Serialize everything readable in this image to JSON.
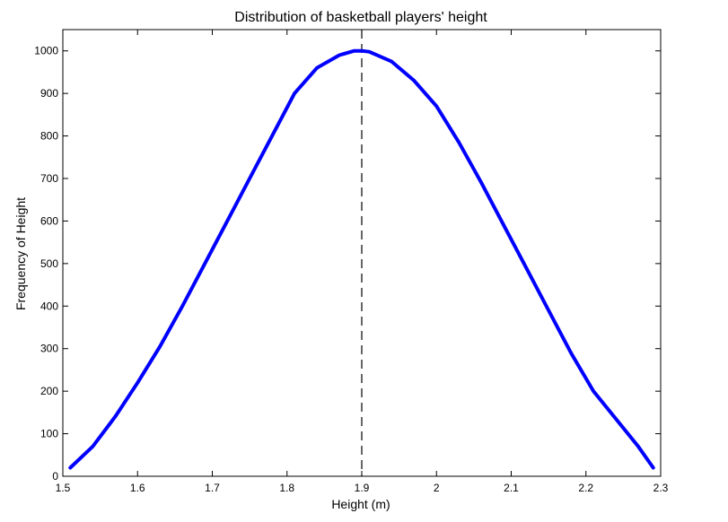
{
  "chart_data": {
    "type": "line",
    "title": "Distribution of basketball players' height",
    "xlabel": "Height (m)",
    "ylabel": "Frequency of Height",
    "xlim": [
      1.5,
      2.3
    ],
    "ylim": [
      0,
      1050
    ],
    "xticks": [
      1.5,
      1.6,
      1.7,
      1.8,
      1.9,
      2.0,
      2.1,
      2.2,
      2.3
    ],
    "xtick_labels": [
      "1.5",
      "1.6",
      "1.7",
      "1.8",
      "1.9",
      "2",
      "2.1",
      "2.2",
      "2.3"
    ],
    "yticks": [
      0,
      100,
      200,
      300,
      400,
      500,
      600,
      700,
      800,
      900,
      1000
    ],
    "ytick_labels": [
      "0",
      "100",
      "200",
      "300",
      "400",
      "500",
      "600",
      "700",
      "800",
      "900",
      "1000"
    ],
    "grid": false,
    "legend": "none",
    "series": [
      {
        "color": "#0000ff",
        "x": [
          1.51,
          1.54,
          1.57,
          1.6,
          1.63,
          1.66,
          1.69,
          1.72,
          1.75,
          1.78,
          1.81,
          1.84,
          1.87,
          1.89,
          1.9,
          1.91,
          1.94,
          1.97,
          2.0,
          2.03,
          2.06,
          2.09,
          2.12,
          2.15,
          2.18,
          2.21,
          2.24,
          2.27,
          2.29
        ],
        "y": [
          20,
          70,
          140,
          220,
          305,
          400,
          500,
          600,
          700,
          800,
          900,
          960,
          990,
          1000,
          1000,
          998,
          975,
          930,
          870,
          785,
          690,
          590,
          490,
          390,
          290,
          200,
          135,
          70,
          20
        ]
      }
    ],
    "reference_line": {
      "x": 1.9,
      "style": "dashed",
      "color": "#000000"
    }
  }
}
